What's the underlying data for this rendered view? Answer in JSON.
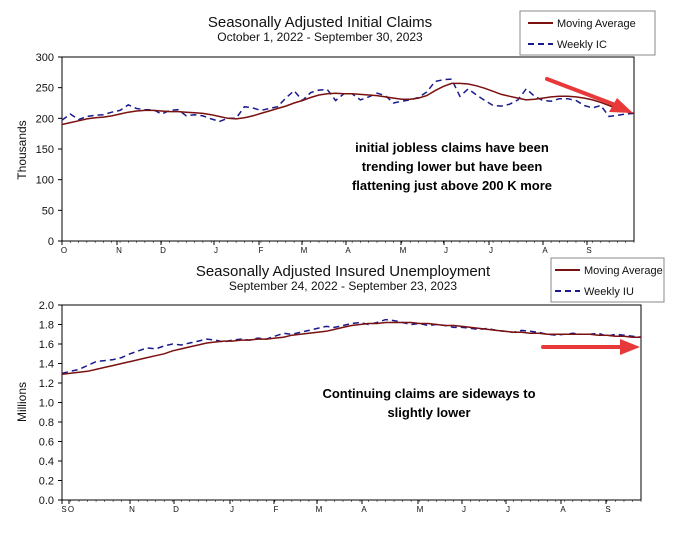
{
  "colors": {
    "moving_average": "#7a1010",
    "weekly": "#1a1a8c",
    "arrow": "#e8393a",
    "axis": "#000000"
  },
  "chart_data": [
    {
      "type": "line",
      "title": "Seasonally Adjusted Initial Claims",
      "subtitle": "October 1, 2022 - September 30, 2023",
      "ylabel": "Thousands",
      "ylim": [
        0,
        300
      ],
      "yticks": [
        "0",
        "50",
        "100",
        "150",
        "200",
        "250",
        "300"
      ],
      "xticks": [
        "O",
        "N",
        "D",
        "J",
        "F",
        "M",
        "A",
        "M",
        "J",
        "J",
        "A",
        "S"
      ],
      "legend": {
        "placement": "top-right",
        "entries": [
          "Moving Average",
          "Weekly IC"
        ]
      },
      "annotation": [
        "initial jobless claims have been",
        "trending lower but have been",
        "flattening just above 200 K more"
      ],
      "series": [
        {
          "name": "Moving Average",
          "style": "solid",
          "values": [
            190,
            193,
            196,
            199,
            201,
            202,
            204,
            207,
            210,
            212,
            213,
            213,
            212,
            211,
            211,
            210,
            209,
            208,
            206,
            203,
            200,
            199,
            201,
            204,
            208,
            212,
            216,
            220,
            225,
            229,
            234,
            238,
            240,
            241,
            240,
            240,
            239,
            238,
            237,
            235,
            233,
            231,
            231,
            233,
            237,
            245,
            252,
            257,
            257,
            256,
            253,
            249,
            244,
            239,
            236,
            233,
            230,
            231,
            233,
            235,
            236,
            236,
            235,
            233,
            230,
            226,
            221,
            216,
            211,
            208
          ]
        },
        {
          "name": "Weekly IC",
          "style": "dashed",
          "values": [
            197,
            207,
            198,
            203,
            205,
            206,
            210,
            213,
            222,
            216,
            214,
            214,
            207,
            213,
            214,
            204,
            206,
            204,
            199,
            195,
            200,
            200,
            219,
            217,
            213,
            216,
            219,
            233,
            245,
            229,
            242,
            246,
            247,
            229,
            240,
            240,
            230,
            235,
            241,
            237,
            225,
            228,
            230,
            234,
            243,
            260,
            263,
            264,
            236,
            248,
            238,
            229,
            221,
            220,
            223,
            230,
            248,
            236,
            229,
            228,
            232,
            232,
            229,
            221,
            217,
            221,
            203,
            205,
            207,
            208
          ]
        }
      ]
    },
    {
      "type": "line",
      "title": "Seasonally Adjusted Insured Unemployment",
      "subtitle": "September 24, 2022 - September 23, 2023",
      "ylabel": "Millions",
      "ylim": [
        0,
        2.0
      ],
      "yticks": [
        "0.0",
        "0.2",
        "0.4",
        "0.6",
        "0.8",
        "1.0",
        "1.2",
        "1.4",
        "1.6",
        "1.8",
        "2.0"
      ],
      "xticks": [
        "S",
        "O",
        "N",
        "D",
        "J",
        "F",
        "M",
        "A",
        "M",
        "J",
        "J",
        "A",
        "S"
      ],
      "legend": {
        "placement": "top-right",
        "entries": [
          "Moving Average",
          "Weekly IU"
        ]
      },
      "annotation": [
        "Continuing claims are sideways to",
        "slightly lower"
      ],
      "series": [
        {
          "name": "Moving Average",
          "style": "solid",
          "values": [
            1.29,
            1.3,
            1.31,
            1.32,
            1.34,
            1.36,
            1.38,
            1.4,
            1.42,
            1.44,
            1.46,
            1.48,
            1.5,
            1.53,
            1.55,
            1.57,
            1.59,
            1.61,
            1.62,
            1.63,
            1.63,
            1.64,
            1.64,
            1.65,
            1.65,
            1.66,
            1.67,
            1.69,
            1.7,
            1.71,
            1.72,
            1.73,
            1.75,
            1.77,
            1.79,
            1.8,
            1.81,
            1.81,
            1.82,
            1.82,
            1.82,
            1.82,
            1.81,
            1.81,
            1.8,
            1.79,
            1.79,
            1.78,
            1.77,
            1.76,
            1.75,
            1.74,
            1.73,
            1.72,
            1.72,
            1.71,
            1.71,
            1.7,
            1.7,
            1.7,
            1.7,
            1.7,
            1.7,
            1.69,
            1.69,
            1.68,
            1.68,
            1.67,
            1.67
          ]
        },
        {
          "name": "Weekly IU",
          "style": "dashed",
          "values": [
            1.3,
            1.32,
            1.34,
            1.38,
            1.42,
            1.43,
            1.44,
            1.46,
            1.5,
            1.53,
            1.56,
            1.55,
            1.58,
            1.6,
            1.59,
            1.61,
            1.63,
            1.65,
            1.64,
            1.62,
            1.64,
            1.65,
            1.64,
            1.66,
            1.65,
            1.68,
            1.71,
            1.7,
            1.72,
            1.74,
            1.76,
            1.78,
            1.77,
            1.79,
            1.81,
            1.82,
            1.8,
            1.82,
            1.85,
            1.84,
            1.82,
            1.8,
            1.81,
            1.79,
            1.8,
            1.79,
            1.77,
            1.77,
            1.76,
            1.75,
            1.76,
            1.74,
            1.73,
            1.72,
            1.74,
            1.73,
            1.72,
            1.7,
            1.69,
            1.7,
            1.71,
            1.7,
            1.7,
            1.71,
            1.68,
            1.7,
            1.69,
            1.68,
            1.67
          ]
        }
      ]
    }
  ]
}
